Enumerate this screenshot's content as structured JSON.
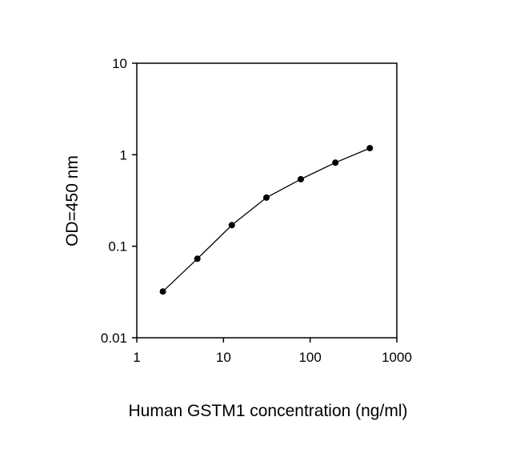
{
  "chart_data": {
    "type": "line",
    "title": "",
    "xlabel": "Human GSTM1 concentration (ng/ml)",
    "ylabel": "OD=450 nm",
    "xscale": "log",
    "yscale": "log",
    "xlim": [
      1,
      1000
    ],
    "ylim": [
      0.01,
      10
    ],
    "xticks": [
      {
        "value": 1,
        "label": "1"
      },
      {
        "value": 10,
        "label": "10"
      },
      {
        "value": 100,
        "label": "100"
      },
      {
        "value": 1000,
        "label": "1000"
      }
    ],
    "yticks": [
      {
        "value": 10,
        "label": "10"
      },
      {
        "value": 1,
        "label": "1"
      },
      {
        "value": 0.1,
        "label": "0.1"
      },
      {
        "value": 0.01,
        "label": "0.01"
      }
    ],
    "grid": false,
    "legend": "none",
    "line_color": "#000000",
    "marker": "circle",
    "series": [
      {
        "x": [
          2.0,
          5.0,
          12.5,
          31.3,
          78.1,
          195.3,
          488.3
        ],
        "y": [
          0.032,
          0.073,
          0.17,
          0.34,
          0.54,
          0.82,
          1.18
        ]
      }
    ]
  }
}
